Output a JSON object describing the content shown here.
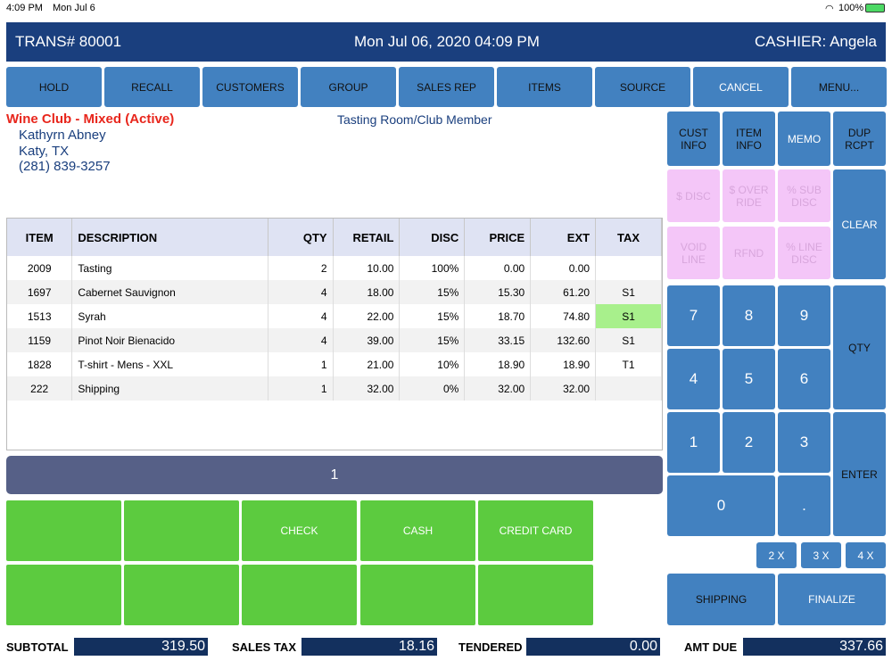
{
  "status": {
    "time": "4:09 PM",
    "date": "Mon Jul 6",
    "battery": "100%"
  },
  "header": {
    "trans": "TRANS# 80001",
    "datetime": "Mon Jul 06, 2020 04:09 PM",
    "cashier": "CASHIER: Angela"
  },
  "toolbar": [
    "HOLD",
    "RECALL",
    "CUSTOMERS",
    "GROUP",
    "SALES REP",
    "ITEMS",
    "SOURCE",
    "CANCEL",
    "MENU..."
  ],
  "customer": {
    "club": "Wine Club - Mixed (Active)",
    "name": "Kathyrn Abney",
    "city": "Katy, TX",
    "phone": "(281) 839-3257",
    "type": "Tasting Room/Club Member"
  },
  "table": {
    "headers": [
      "ITEM",
      "DESCRIPTION",
      "QTY",
      "RETAIL",
      "DISC",
      "PRICE",
      "EXT",
      "TAX"
    ],
    "rows": [
      [
        "2009",
        "Tasting",
        "2",
        "10.00",
        "100%",
        "0.00",
        "0.00",
        ""
      ],
      [
        "1697",
        "Cabernet Sauvignon",
        "4",
        "18.00",
        "15%",
        "15.30",
        "61.20",
        "S1"
      ],
      [
        "1513",
        "Syrah",
        "4",
        "22.00",
        "15%",
        "18.70",
        "74.80",
        "S1"
      ],
      [
        "1159",
        "Pinot Noir Bienacido",
        "4",
        "39.00",
        "15%",
        "33.15",
        "132.60",
        "S1"
      ],
      [
        "1828",
        "T-shirt - Mens - XXL",
        "1",
        "21.00",
        "10%",
        "18.90",
        "18.90",
        "T1"
      ],
      [
        "222",
        "Shipping",
        "1",
        "32.00",
        "0%",
        "32.00",
        "32.00",
        ""
      ]
    ]
  },
  "display": "1",
  "tenders": [
    "",
    "",
    "CHECK",
    "CASH",
    "CREDIT CARD",
    "",
    "",
    "",
    "",
    ""
  ],
  "keypad": {
    "cust_info": "CUST INFO",
    "item_info": "ITEM INFO",
    "memo": "MEMO",
    "dup_rcpt": "DUP RCPT",
    "disc": "$ DISC",
    "override": "$ OVER RIDE",
    "sub_disc": "% SUB DISC",
    "void_line": "VOID LINE",
    "rfnd": "RFND",
    "line_disc": "% LINE DISC",
    "clear": "CLEAR",
    "qty": "QTY",
    "enter": "ENTER",
    "digits": [
      "7",
      "8",
      "9",
      "4",
      "5",
      "6",
      "1",
      "2",
      "3",
      "0",
      "."
    ],
    "mult": [
      "2 X",
      "3 X",
      "4 X"
    ],
    "shipping": "SHIPPING",
    "finalize": "FINALIZE"
  },
  "totals": {
    "subtotal_label": "SUBTOTAL",
    "subtotal": "319.50",
    "tax_label": "SALES TAX",
    "tax": "18.16",
    "tendered_label": "TENDERED",
    "tendered": "0.00",
    "due_label": "AMT DUE",
    "due": "337.66"
  },
  "colors": {
    "header": "#1a3f7e",
    "button": "#4281c0",
    "green": "#5ccb3f",
    "pink": "#f4c6f8",
    "club": "#e8261c"
  }
}
